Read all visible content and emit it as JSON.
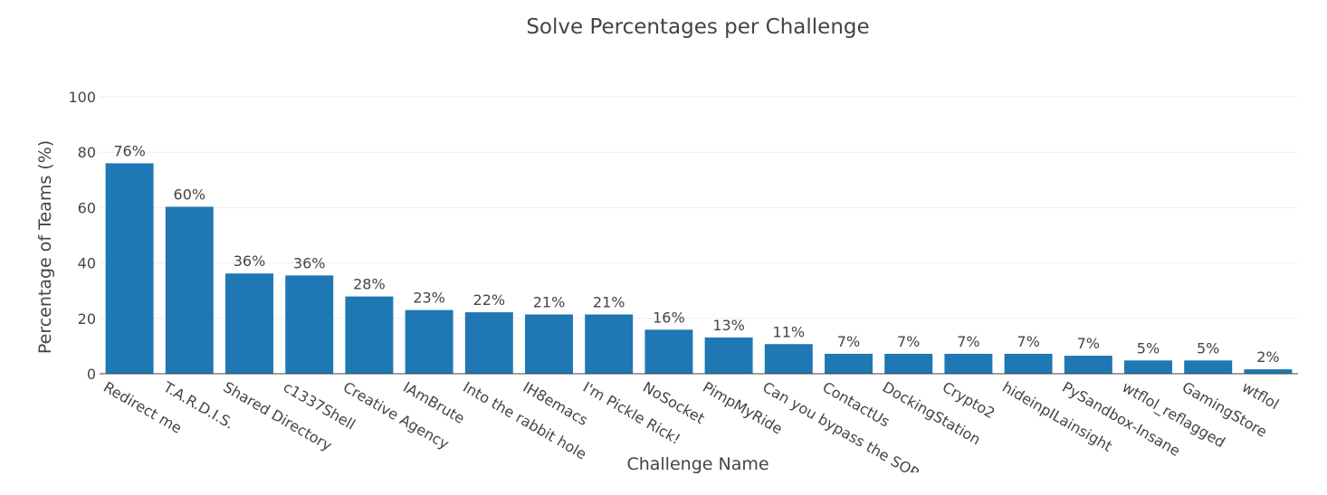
{
  "chart_data": {
    "type": "bar",
    "title": "Solve Percentages per Challenge",
    "xlabel": "Challenge Name",
    "ylabel": "Percentage of Teams (%)",
    "ylim": [
      0,
      100
    ],
    "yticks": [
      0,
      20,
      40,
      60,
      80,
      100
    ],
    "grid": true,
    "bar_color": "#1f77b4",
    "categories": [
      "Redirect me",
      "T.A.R.D.I.S.",
      "Shared Directory",
      "c1337Shell",
      "Creative Agency",
      "IAmBrute",
      "Into the rabbit hole",
      "IH8emacs",
      "I'm Pickle Rick!",
      "NoSocket",
      "PimpMyRide",
      "Can you bypass the SOP",
      "ContactUs",
      "DockingStation",
      "Crypto2",
      "hideinpILainsight",
      "PySandbox-Insane",
      "wtflol_reflagged",
      "GamingStore",
      "wtflol"
    ],
    "values": [
      76,
      60.3,
      36.2,
      35.5,
      27.9,
      23,
      22.2,
      21.4,
      21.4,
      15.9,
      13.1,
      10.7,
      7.2,
      7.2,
      7.2,
      7.2,
      6.5,
      4.8,
      4.8,
      1.6
    ],
    "data_labels": [
      "76%",
      "60%",
      "36%",
      "36%",
      "28%",
      "23%",
      "22%",
      "21%",
      "21%",
      "16%",
      "13%",
      "11%",
      "7%",
      "7%",
      "7%",
      "7%",
      "7%",
      "5%",
      "5%",
      "2%"
    ]
  }
}
